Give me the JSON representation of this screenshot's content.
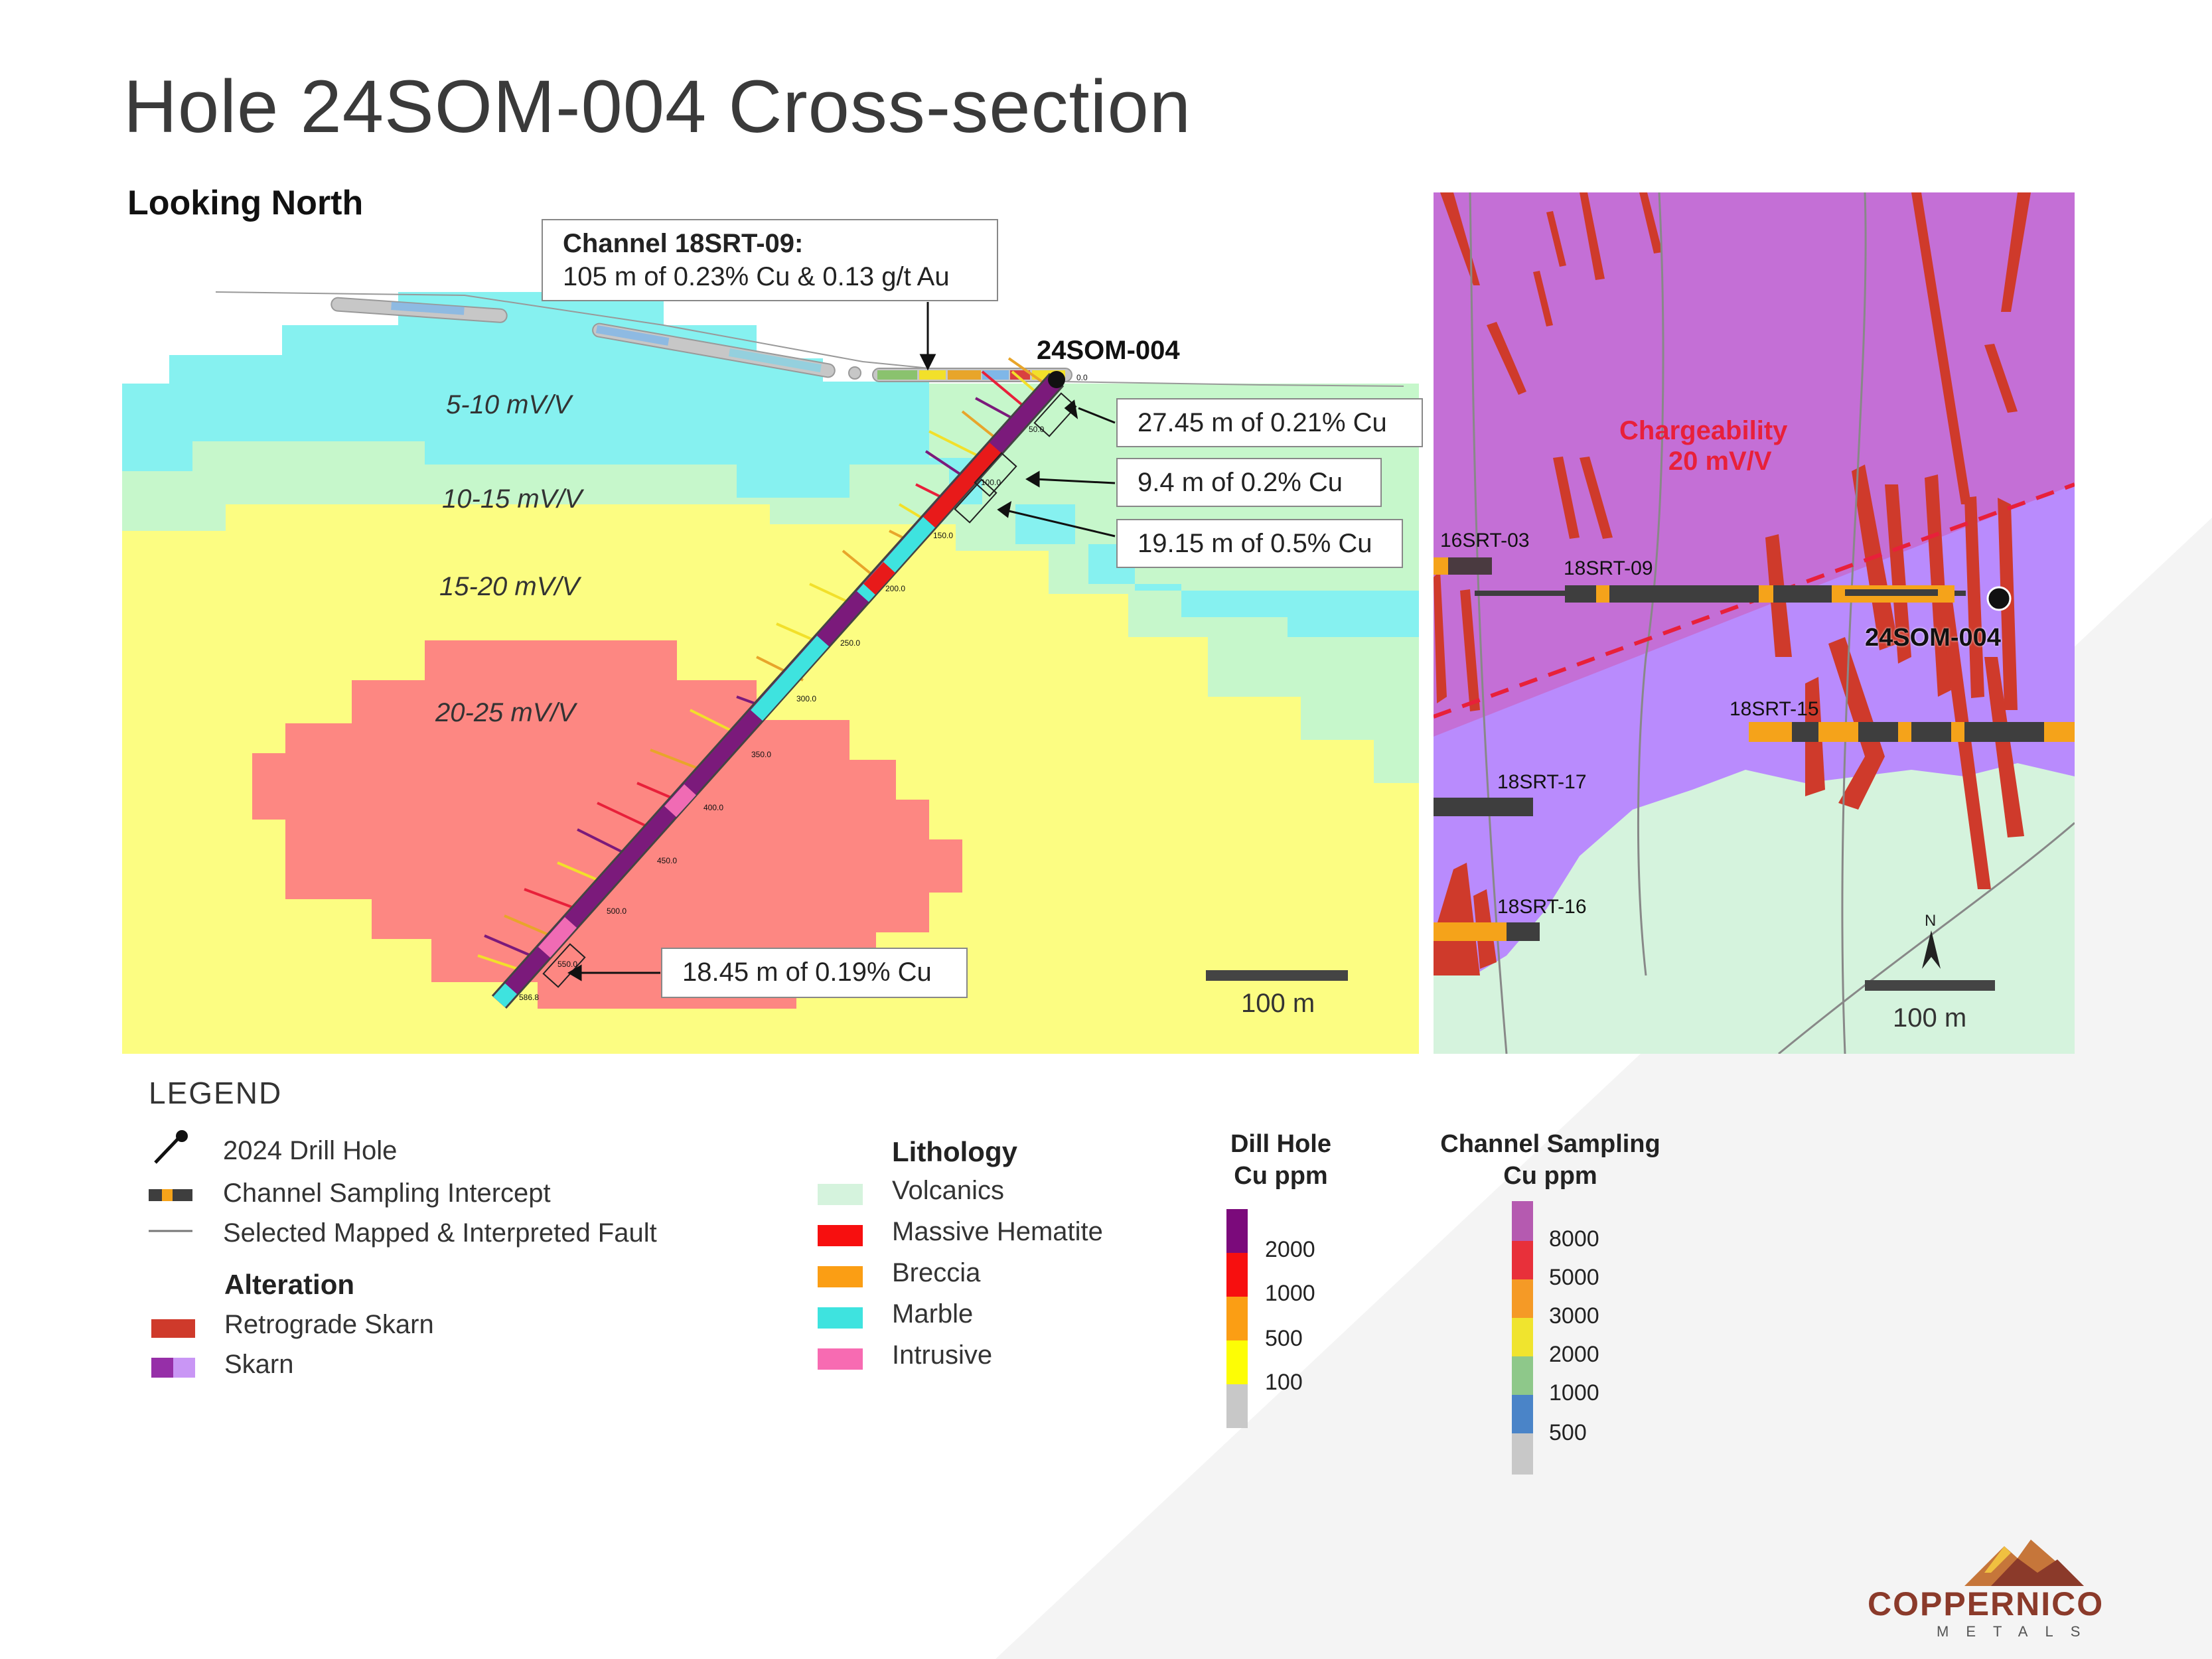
{
  "title": "Hole 24SOM-004 Cross-section",
  "subtitle": "Looking North",
  "cross_section": {
    "zones": [
      "5-10 mV/V",
      "10-15 mV/V",
      "15-20 mV/V",
      "20-25 mV/V"
    ],
    "hole_label": "24SOM-004",
    "callouts": {
      "channel_line1": "Channel 18SRT-09:",
      "channel_line2": "105 m of 0.23% Cu & 0.13 g/t Au",
      "int1": "27.45 m of 0.21% Cu",
      "int2": "9.4 m of 0.2% Cu",
      "int3": "19.15 m of 0.5% Cu",
      "int4": "18.45 m of 0.19% Cu"
    },
    "depth_markers": [
      "0.0",
      "50.0",
      "100.0",
      "150.0",
      "200.0",
      "250.0",
      "300.0",
      "350.0",
      "400.0",
      "450.0",
      "500.0",
      "550.0",
      "586.8"
    ],
    "scale_label": "100 m"
  },
  "plan_map": {
    "chargeability_line1": "Chargeability",
    "chargeability_line2": "20 mV/V",
    "channels": [
      "16SRT-03",
      "18SRT-09",
      "18SRT-15",
      "18SRT-17",
      "18SRT-16"
    ],
    "hole_label": "24SOM-004",
    "north_label": "N",
    "scale_label": "100 m"
  },
  "legend": {
    "title": "LEGEND",
    "drill_hole": "2024 Drill Hole",
    "channel_intercept": "Channel Sampling Intercept",
    "fault": "Selected Mapped & Interpreted Fault",
    "alteration_head": "Alteration",
    "retrograde_skarn": "Retrograde Skarn",
    "skarn": "Skarn",
    "lithology_head": "Lithology",
    "lithology": [
      "Volcanics",
      "Massive Hematite",
      "Breccia",
      "Marble",
      "Intrusive"
    ],
    "drill_ramp_head1": "Dill Hole",
    "drill_ramp_head2": "Cu ppm",
    "drill_ramp": [
      "2000",
      "1000",
      "500",
      "100"
    ],
    "channel_ramp_head1": "Channel Sampling",
    "channel_ramp_head2": "Cu ppm",
    "channel_ramp": [
      "8000",
      "5000",
      "3000",
      "2000",
      "1000",
      "500"
    ]
  },
  "logo": {
    "name": "COPPERNICO",
    "sub": "METALS"
  },
  "colors": {
    "zone_5_10": "#86f1f0",
    "zone_10_15": "#c6f7cb",
    "zone_15_20": "#fcfd82",
    "zone_20_25": "#fd8782",
    "plan_skarn_dark": "#c46fd6",
    "plan_skarn_light": "#b98bfd",
    "plan_volcanics": "#d5f3dd",
    "retrograde": "#cf3a2b",
    "chargeability": "#e8203a"
  }
}
